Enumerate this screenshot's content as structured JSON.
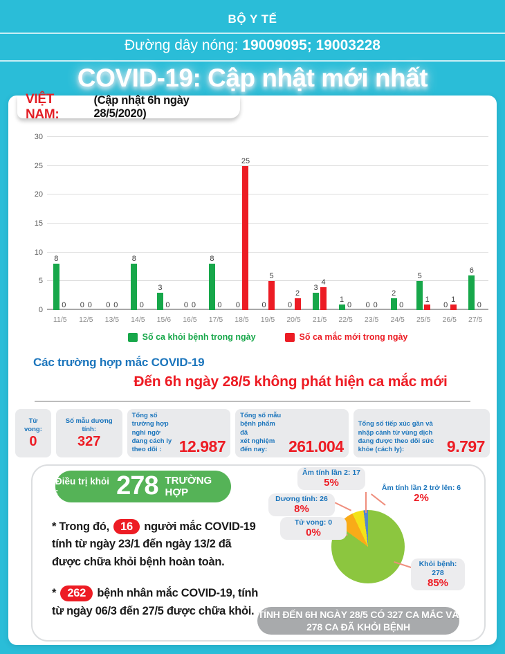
{
  "colors": {
    "background": "#2abdd8",
    "accent_blue": "#1b75bc",
    "accent_red": "#ed1c24",
    "bar_green": "#17a74a",
    "bar_red": "#ec1c24",
    "pie_green": "#8cc63f",
    "pie_orange": "#f9ab18",
    "pie_yellow": "#f2e219",
    "pie_blue": "#5288cc",
    "cured_pill_green": "#55b357",
    "summary_gray": "#a8aaac"
  },
  "header": {
    "ministry": "BỘ Y TẾ",
    "hotline_label": "Đường dây nóng: ",
    "hotline_numbers": "19009095; 19003228",
    "title": "COVID-19: Cập nhật mới nhất"
  },
  "vietnam": {
    "country_label": "VIỆT NAM:",
    "update_note": "(Cập nhật 6h ngày 28/5/2020)"
  },
  "chart_data": [
    {
      "type": "bar",
      "categories": [
        "11/5",
        "12/5",
        "13/5",
        "14/5",
        "15/6",
        "16/5",
        "17/5",
        "18/5",
        "19/5",
        "20/5",
        "21/5",
        "22/5",
        "23/5",
        "24/5",
        "25/5",
        "26/5",
        "27/5"
      ],
      "series": [
        {
          "name": "Số ca khỏi bệnh trong ngày",
          "color": "#17a74a",
          "values": [
            8,
            0,
            0,
            8,
            3,
            0,
            8,
            0,
            0,
            0,
            3,
            1,
            0,
            2,
            5,
            0,
            6
          ]
        },
        {
          "name": "Số ca mắc mới trong ngày",
          "color": "#ec1c24",
          "values": [
            0,
            0,
            0,
            0,
            0,
            0,
            0,
            25,
            5,
            2,
            4,
            0,
            0,
            0,
            1,
            1,
            0
          ]
        }
      ],
      "ylim": [
        0,
        30
      ],
      "yticks": [
        0,
        5,
        10,
        15,
        20,
        25,
        30
      ],
      "grid": true,
      "legend_position": "bottom",
      "value_labels": true
    },
    {
      "type": "pie",
      "title": "",
      "slices": [
        {
          "label": "Khỏi bệnh: 278",
          "value": 278,
          "pct": 85,
          "pct_label": "85%",
          "color": "#8cc63f"
        },
        {
          "label": "Dương tính: 26",
          "value": 26,
          "pct": 8,
          "pct_label": "8%",
          "color": "#f9ab18"
        },
        {
          "label": "Âm tính lần 2: 17",
          "value": 17,
          "pct": 5,
          "pct_label": "5%",
          "color": "#f2e219"
        },
        {
          "label": "Âm tính lần 2 trở lên: 6",
          "value": 6,
          "pct": 2,
          "pct_label": "2%",
          "color": "#5288cc"
        },
        {
          "label": "Tử vong: 0",
          "value": 0,
          "pct": 0,
          "pct_label": "0%",
          "color": "#ed1c24"
        }
      ]
    }
  ],
  "cases": {
    "heading": "Các trường hợp mắc COVID-19",
    "announcement": "Đến 6h ngày 28/5 không phát hiện ca mắc mới"
  },
  "stats": {
    "items": [
      {
        "label1": "Tử vong:",
        "label2": "",
        "value": "0"
      },
      {
        "label1": "Số mẫu dương tính:",
        "label2": "",
        "value": "327"
      },
      {
        "label1": "Tổng số trường hợp nghi ngờ",
        "label2": "đang cách ly theo dõi :",
        "value": "12.987"
      },
      {
        "label1": "Tổng số mẫu bệnh phẩm đã",
        "label2": "xét nghiệm đến nay:",
        "value": "261.004"
      },
      {
        "label1": "Tổng số tiếp xúc gần và nhập cảnh từ vùng dịch",
        "label2": "đang được theo dõi sức khỏe (cách ly):",
        "value": "9.797"
      }
    ]
  },
  "recovery": {
    "cured_label": "Điều trị khỏi :",
    "cured_number": "278",
    "cured_unit": "TRƯỜNG HỢP",
    "note1_prefix": "* Trong đó,",
    "note1_number": "16",
    "note1_suffix": "người mắc COVID-19 tính từ ngày 23/1 đến ngày 13/2 đã được chữa khỏi bệnh hoàn toàn.",
    "note2_prefix": "*",
    "note2_number": "262",
    "note2_suffix": "bệnh nhân mắc COVID-19, tính từ ngày 06/3 đến 27/5 được chữa khỏi."
  },
  "summary": {
    "line1": "TÍNH ĐẾN 6H NGÀY 28/5 CÓ 327 CA MẮC VÀ",
    "line2": "278 CA ĐÃ KHỎI BỆNH"
  }
}
